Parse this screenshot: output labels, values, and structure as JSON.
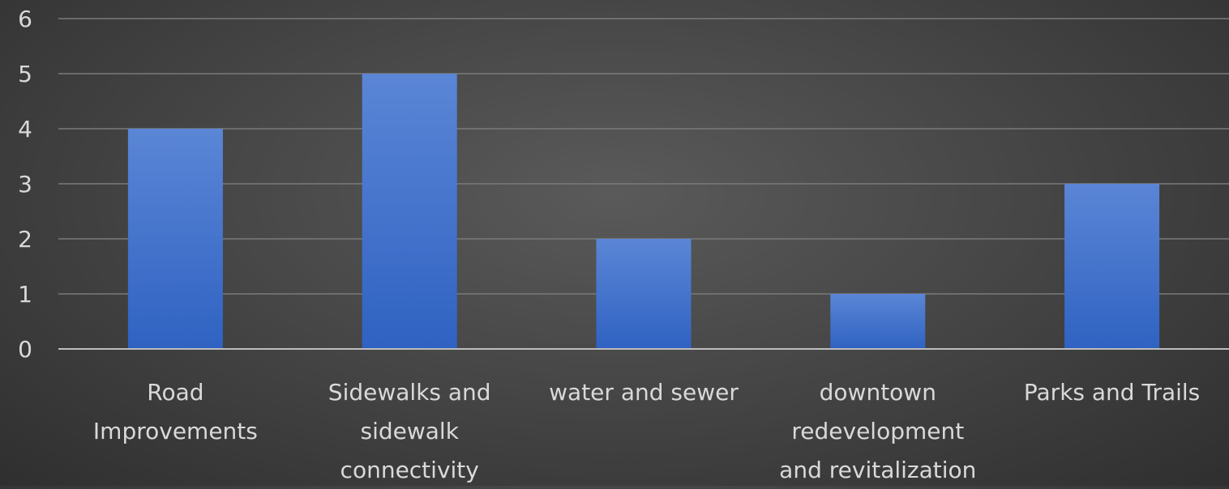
{
  "chart_data": {
    "type": "bar",
    "title": "",
    "xlabel": "",
    "ylabel": "",
    "categories": [
      "Road Improvements",
      "Sidewalks and sidewalk connectivity",
      "water and sewer",
      "downtown redevelopment and revitalization",
      "Parks and Trails"
    ],
    "category_label_lines": [
      [
        "Road",
        "Improvements"
      ],
      [
        "Sidewalks and",
        "sidewalk",
        "connectivity"
      ],
      [
        "water and sewer"
      ],
      [
        "downtown",
        "redevelopment",
        "and revitalization"
      ],
      [
        "Parks and Trails"
      ]
    ],
    "values": [
      4,
      5,
      2,
      1,
      3
    ],
    "ylim": [
      0,
      6
    ],
    "yticks": [
      "0",
      "1",
      "2",
      "3",
      "4",
      "5",
      "6"
    ],
    "grid": true,
    "legend": "none"
  },
  "colors": {
    "bar_top": "#5b86d6",
    "bar_bottom": "#2f62c2",
    "gridline": "#7a7a7a",
    "axis": "#bdbdbd",
    "text": "#d9d9d9"
  }
}
